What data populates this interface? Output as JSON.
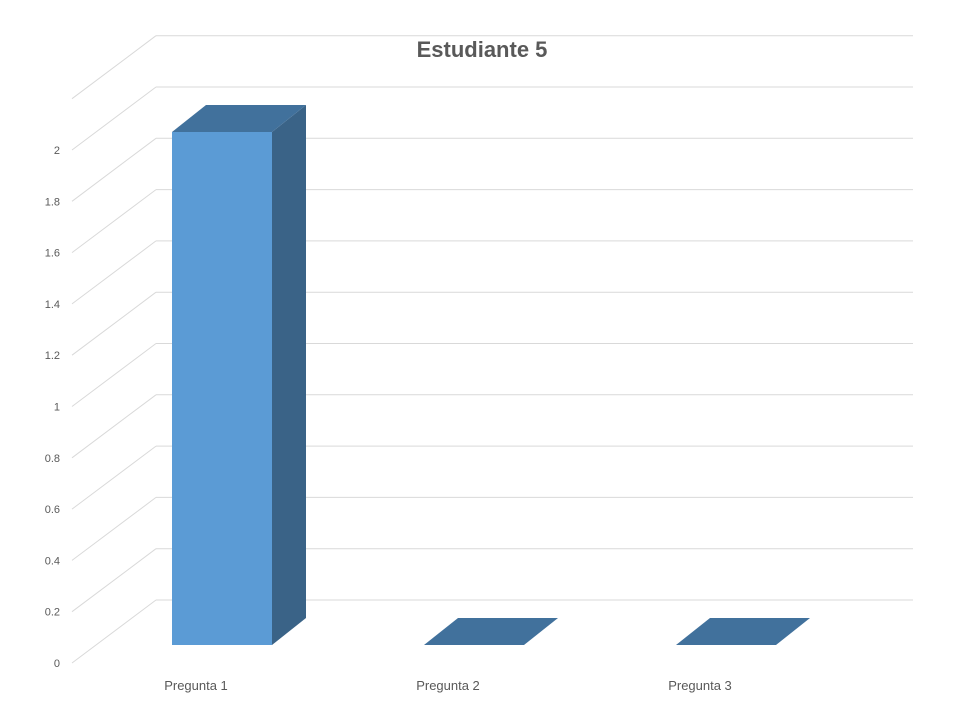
{
  "chart_data": {
    "type": "bar",
    "title": "Estudiante 5",
    "categories": [
      "Pregunta 1",
      "Pregunta 2",
      "Pregunta 3"
    ],
    "values": [
      2,
      0,
      0
    ],
    "ylim": [
      0,
      2.2
    ],
    "yticks": [
      "0",
      "0.2",
      "0.4",
      "0.6",
      "0.8",
      "1",
      "1.2",
      "1.4",
      "1.6",
      "1.8",
      "2"
    ],
    "grid": true,
    "legend": "none",
    "three_d": true,
    "colors": {
      "front": "#5b9bd5",
      "side": "#3a6387",
      "top": "#41719c",
      "grid": "#d9d9d9",
      "text": "#595959"
    }
  }
}
